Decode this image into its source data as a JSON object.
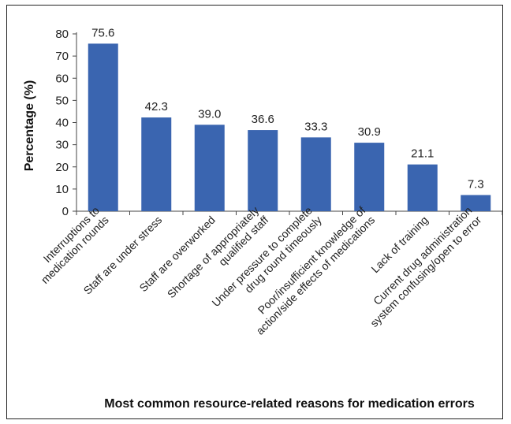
{
  "chart_data": {
    "type": "bar",
    "title": "",
    "xlabel": "Most common resource-related reasons for medication errors",
    "ylabel": "Percentage (%)",
    "ylim": [
      0,
      80
    ],
    "yticks": [
      0,
      10,
      20,
      30,
      40,
      50,
      60,
      70,
      80
    ],
    "grid": false,
    "bar_color": "#3a65b0",
    "categories": [
      [
        "Interruptions to",
        "medication rounds"
      ],
      [
        "Staff are under stress"
      ],
      [
        "Staff are overworked"
      ],
      [
        "Shortage of appropriately",
        "qualified staff"
      ],
      [
        "Under pressure to complete",
        "drug round timeously"
      ],
      [
        "Poor/insufficient knowledge of",
        "action/side effects of medications"
      ],
      [
        "Lack of training"
      ],
      [
        "Current drug administration",
        "system confusing/open to error"
      ]
    ],
    "values": [
      75.6,
      42.3,
      39.0,
      36.6,
      33.3,
      30.9,
      21.1,
      7.3
    ],
    "value_labels": [
      "75.6",
      "42.3",
      "39.0",
      "36.6",
      "33.3",
      "30.9",
      "21.1",
      "7.3"
    ]
  }
}
